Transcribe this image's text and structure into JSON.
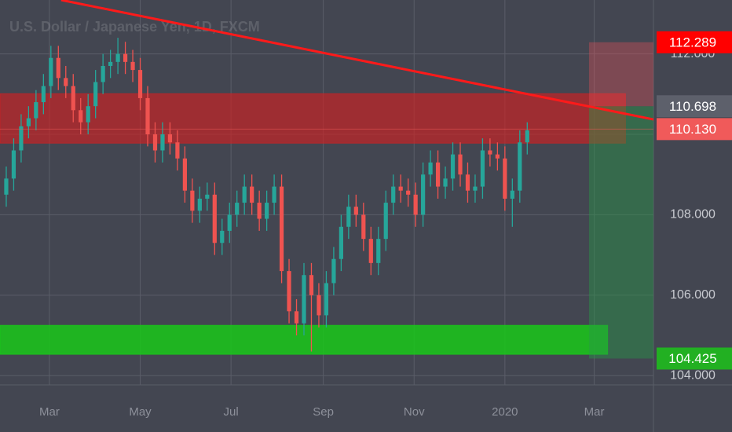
{
  "chart_data": {
    "type": "candlestick",
    "title": "U.S. Dollar / Japanese Yen, 1D, FXCM",
    "up_color": "#26a69a",
    "down_color": "#ef5350",
    "grid": true,
    "x": [
      30,
      35,
      40,
      45,
      50,
      55,
      60,
      65,
      70,
      75,
      80,
      85,
      90,
      95,
      100,
      105,
      110,
      115,
      120,
      125,
      130,
      135,
      140,
      145,
      150,
      155,
      160,
      165,
      170,
      175,
      180,
      185,
      190,
      195,
      200,
      205,
      210,
      215,
      220,
      225,
      230,
      235,
      240,
      245,
      250,
      255,
      260,
      265,
      270,
      275,
      280,
      285,
      290,
      295,
      300,
      305,
      310,
      315,
      320,
      325,
      330,
      335,
      340,
      345,
      350,
      355,
      360,
      365,
      370,
      375,
      380
    ],
    "open": [
      108.5,
      108.9,
      109.6,
      110.2,
      110.4,
      110.8,
      111.2,
      111.9,
      111.4,
      111.2,
      110.6,
      110.3,
      110.7,
      111.3,
      111.7,
      111.8,
      112.0,
      111.8,
      111.6,
      110.9,
      110.0,
      109.6,
      110.0,
      109.8,
      109.4,
      108.6,
      108.1,
      108.4,
      108.5,
      107.3,
      107.6,
      108.0,
      108.3,
      108.7,
      108.3,
      107.9,
      108.3,
      108.7,
      106.6,
      105.6,
      105.3,
      106.5,
      106.0,
      105.5,
      106.3,
      106.9,
      107.7,
      108.2,
      108.0,
      107.4,
      106.8,
      107.4,
      108.3,
      108.7,
      108.6,
      108.5,
      108.0,
      109.0,
      109.3,
      108.7,
      108.9,
      109.5,
      109.0,
      108.6,
      108.7,
      109.6,
      109.5,
      109.4,
      108.4,
      108.6,
      109.8
    ],
    "high": [
      109.2,
      109.9,
      110.5,
      110.7,
      111.1,
      111.5,
      112.2,
      112.2,
      111.7,
      111.5,
      110.9,
      111.0,
      111.6,
      112.0,
      112.1,
      112.4,
      112.3,
      112.1,
      111.9,
      111.2,
      110.3,
      110.3,
      110.3,
      110.1,
      109.7,
      108.9,
      108.7,
      108.8,
      108.8,
      107.9,
      108.3,
      108.6,
      109.0,
      109.0,
      108.6,
      108.6,
      109.0,
      109.0,
      106.9,
      105.9,
      106.8,
      106.8,
      106.3,
      106.6,
      107.2,
      108.0,
      108.5,
      108.5,
      108.3,
      107.7,
      107.7,
      108.6,
      109.0,
      109.0,
      108.9,
      108.8,
      109.3,
      109.6,
      109.6,
      109.2,
      109.8,
      109.8,
      109.3,
      109.0,
      109.9,
      109.9,
      109.8,
      109.7,
      108.9,
      110.1,
      110.3
    ],
    "low": [
      108.2,
      108.6,
      109.3,
      109.9,
      110.1,
      110.5,
      110.9,
      111.1,
      110.9,
      110.3,
      110.0,
      110.0,
      110.4,
      111.0,
      111.4,
      111.5,
      111.5,
      111.3,
      110.6,
      109.7,
      109.3,
      109.3,
      109.5,
      109.1,
      108.3,
      107.8,
      107.8,
      108.1,
      107.0,
      107.0,
      107.3,
      107.7,
      108.0,
      108.0,
      107.6,
      107.6,
      108.0,
      106.3,
      105.3,
      105.0,
      105.0,
      104.6,
      105.2,
      105.2,
      106.0,
      106.6,
      107.4,
      107.7,
      107.1,
      106.5,
      106.5,
      107.1,
      108.0,
      108.3,
      108.2,
      107.7,
      107.7,
      108.7,
      108.4,
      108.4,
      108.6,
      108.7,
      108.3,
      108.3,
      108.4,
      109.2,
      109.1,
      108.1,
      107.7,
      108.3,
      109.5
    ],
    "close": [
      108.9,
      109.6,
      110.2,
      110.4,
      110.8,
      111.2,
      111.9,
      111.4,
      111.2,
      110.6,
      110.3,
      110.7,
      111.3,
      111.7,
      111.8,
      112.0,
      111.8,
      111.6,
      110.9,
      110.0,
      109.6,
      110.0,
      109.8,
      109.4,
      108.6,
      108.1,
      108.4,
      108.5,
      107.3,
      107.6,
      108.0,
      108.3,
      108.7,
      108.3,
      107.9,
      108.3,
      108.7,
      106.6,
      105.6,
      105.3,
      106.5,
      106.0,
      105.5,
      106.3,
      106.9,
      107.7,
      108.2,
      108.0,
      107.4,
      106.8,
      107.4,
      108.3,
      108.7,
      108.6,
      108.5,
      108.0,
      109.0,
      109.3,
      108.7,
      108.9,
      109.5,
      109.0,
      108.6,
      108.7,
      109.6,
      109.5,
      109.4,
      108.4,
      108.6,
      109.8,
      110.1
    ],
    "xlim": [
      25.8,
      464.8
    ],
    "xticks": [
      {
        "value": 59,
        "label": "Mar"
      },
      {
        "value": 120,
        "label": "May"
      },
      {
        "value": 181,
        "label": "Jul"
      },
      {
        "value": 243,
        "label": "Sep"
      },
      {
        "value": 304,
        "label": "Nov"
      },
      {
        "value": 365,
        "label": "2020"
      },
      {
        "value": 425,
        "label": "Mar"
      }
    ],
    "ylim": [
      103.77,
      113.34
    ],
    "yticks": [
      {
        "value": 104,
        "label": "104.000"
      },
      {
        "value": 106,
        "label": "106.000"
      },
      {
        "value": 108,
        "label": "108.000"
      },
      {
        "value": 110,
        "label": "110.000"
      },
      {
        "value": 112,
        "label": "112.000"
      }
    ],
    "zones": [
      {
        "x": [
          25.8,
          446
        ],
        "y": [
          109.78,
          111.01
        ],
        "color": "rgba(215,30,30,0.62)"
      },
      {
        "x": [
          25.8,
          434
        ],
        "y": [
          104.53,
          105.25
        ],
        "color": "rgba(25,200,25,0.85)"
      }
    ],
    "trendline": {
      "x": [
        66.9,
        464.8
      ],
      "y": [
        113.34,
        110.37
      ],
      "color": "#ff1a1a"
    },
    "position": {
      "x": [
        421.5,
        464.8
      ],
      "stop": {
        "value": 112.289,
        "label": "112.289",
        "color": "#ff0000",
        "zone_color": "rgba(235,80,90,0.35)"
      },
      "entry": {
        "value": 110.698,
        "label": "110.698",
        "color": "#5d606b"
      },
      "target": {
        "value": 104.425,
        "label": "104.425",
        "color": "#22b022",
        "zone_color": "rgba(40,150,70,0.45)"
      }
    },
    "last_price": {
      "value": 110.13,
      "label": "110.130",
      "color": "#f05a5a"
    }
  }
}
